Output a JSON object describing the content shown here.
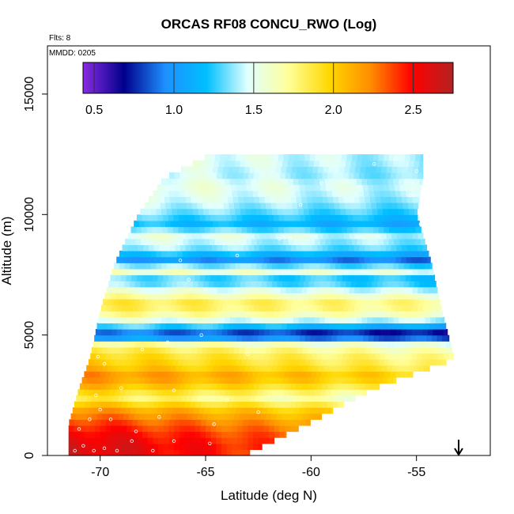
{
  "chart_data": {
    "type": "heatmap",
    "title": "ORCAS RF08 CONCU_RWO (Log)",
    "note_flights": "Flts: 8",
    "note_date": "MMDD: 0205",
    "xlabel": "Latitude (deg N)",
    "ylabel": "Altitude (m)",
    "xlim": [
      -72.5,
      -51.5
    ],
    "ylim": [
      0,
      17000
    ],
    "xticks": [
      -70,
      -65,
      -60,
      -55
    ],
    "yticks": [
      0,
      5000,
      10000,
      15000
    ],
    "xtick_labels": [
      "-70",
      "-65",
      "-60",
      "-55"
    ],
    "ytick_labels": [
      "0",
      "5000",
      "10000",
      "15000"
    ],
    "colorbar": {
      "range": [
        0.43,
        2.75
      ],
      "ticks": [
        0.5,
        1.0,
        1.5,
        2.0,
        2.5
      ],
      "tick_labels": [
        "0.5",
        "1.0",
        "1.5",
        "2.0",
        "2.5"
      ],
      "colors": [
        "#8a2be2",
        "#00008b",
        "#1e90ff",
        "#00bfff",
        "#e0ffff",
        "#ffff99",
        "#ffd700",
        "#ff8c00",
        "#ff0000",
        "#b22222"
      ]
    },
    "arrow_marker_latitude": -53,
    "coverage": [
      {
        "alt": 0,
        "lat_min": -71.5,
        "lat_max": -63.2
      },
      {
        "alt": 1300,
        "lat_min": -71.5,
        "lat_max": -60.2
      },
      {
        "alt": 2800,
        "lat_min": -71.0,
        "lat_max": -57.0
      },
      {
        "alt": 4000,
        "lat_min": -70.5,
        "lat_max": -53.2
      },
      {
        "alt": 6000,
        "lat_min": -70.0,
        "lat_max": -53.8
      },
      {
        "alt": 8000,
        "lat_min": -69.3,
        "lat_max": -54.3
      },
      {
        "alt": 10000,
        "lat_min": -68.2,
        "lat_max": -55.0
      },
      {
        "alt": 11500,
        "lat_min": -67.0,
        "lat_max": -54.7
      },
      {
        "alt": 12400,
        "lat_min": -65.0,
        "lat_max": -54.7
      }
    ],
    "layers": [
      {
        "alt": 400,
        "value": 2.65
      },
      {
        "alt": 900,
        "value": 2.55
      },
      {
        "alt": 1400,
        "value": 2.4
      },
      {
        "alt": 1900,
        "value": 2.2
      },
      {
        "alt": 2400,
        "value": 1.85
      },
      {
        "alt": 2900,
        "value": 2.1
      },
      {
        "alt": 3300,
        "value": 2.25
      },
      {
        "alt": 3700,
        "value": 2.05
      },
      {
        "alt": 4200,
        "value": 1.95
      },
      {
        "alt": 4600,
        "value": 1.8
      },
      {
        "alt": 5000,
        "value": 0.75
      },
      {
        "alt": 5400,
        "value": 1.35
      },
      {
        "alt": 5900,
        "value": 1.75
      },
      {
        "alt": 6300,
        "value": 1.9
      },
      {
        "alt": 6800,
        "value": 1.6
      },
      {
        "alt": 7300,
        "value": 1.25
      },
      {
        "alt": 7700,
        "value": 1.7
      },
      {
        "alt": 8100,
        "value": 1.0
      },
      {
        "alt": 8600,
        "value": 1.4
      },
      {
        "alt": 9100,
        "value": 1.55
      },
      {
        "alt": 9600,
        "value": 1.2
      },
      {
        "alt": 10200,
        "value": 1.4
      },
      {
        "alt": 10700,
        "value": 1.5
      },
      {
        "alt": 11200,
        "value": 1.55
      },
      {
        "alt": 11700,
        "value": 1.45
      },
      {
        "alt": 12200,
        "value": 1.5
      }
    ],
    "samples": [
      {
        "lat": -71.2,
        "alt": 200
      },
      {
        "lat": -70.8,
        "alt": 400
      },
      {
        "lat": -70.3,
        "alt": 200
      },
      {
        "lat": -69.8,
        "alt": 300
      },
      {
        "lat": -69.2,
        "alt": 200
      },
      {
        "lat": -68.5,
        "alt": 600
      },
      {
        "lat": -67.5,
        "alt": 200
      },
      {
        "lat": -66.5,
        "alt": 600
      },
      {
        "lat": -64.8,
        "alt": 500
      },
      {
        "lat": -71.0,
        "alt": 1100
      },
      {
        "lat": -70.5,
        "alt": 1500
      },
      {
        "lat": -70.0,
        "alt": 1900
      },
      {
        "lat": -69.5,
        "alt": 1500
      },
      {
        "lat": -68.3,
        "alt": 1000
      },
      {
        "lat": -67.2,
        "alt": 1600
      },
      {
        "lat": -64.6,
        "alt": 1300
      },
      {
        "lat": -70.2,
        "alt": 2500
      },
      {
        "lat": -69.0,
        "alt": 2800
      },
      {
        "lat": -66.5,
        "alt": 2700
      },
      {
        "lat": -64.0,
        "alt": 2300
      },
      {
        "lat": -62.5,
        "alt": 1800
      },
      {
        "lat": -70.1,
        "alt": 4100
      },
      {
        "lat": -69.8,
        "alt": 3800
      },
      {
        "lat": -68.0,
        "alt": 4400
      },
      {
        "lat": -66.8,
        "alt": 4700
      },
      {
        "lat": -65.2,
        "alt": 5000
      },
      {
        "lat": -63.0,
        "alt": 4200
      },
      {
        "lat": -66.2,
        "alt": 8100
      },
      {
        "lat": -65.8,
        "alt": 7300
      },
      {
        "lat": -65.0,
        "alt": 6900
      },
      {
        "lat": -63.5,
        "alt": 8300
      },
      {
        "lat": -61.5,
        "alt": 9000
      },
      {
        "lat": -61.0,
        "alt": 9000
      },
      {
        "lat": -60.5,
        "alt": 10400
      },
      {
        "lat": -59.5,
        "alt": 11300
      },
      {
        "lat": -57.0,
        "alt": 12100
      },
      {
        "lat": -56.0,
        "alt": 12300
      },
      {
        "lat": -55.0,
        "alt": 11800
      },
      {
        "lat": -54.8,
        "alt": 9600
      },
      {
        "lat": -55.3,
        "alt": 10800
      }
    ]
  }
}
